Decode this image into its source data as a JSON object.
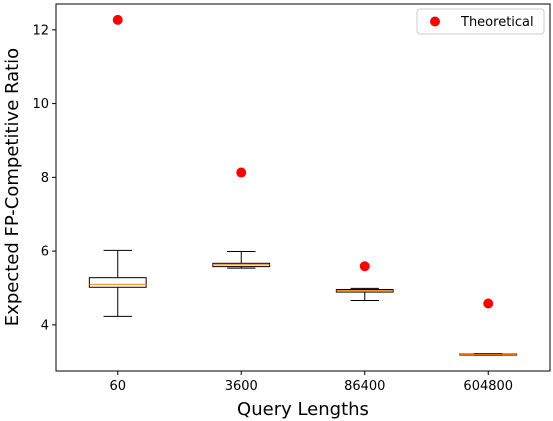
{
  "chart_data": {
    "type": "box",
    "xlabel": "Query Lengths",
    "ylabel": "Expected FP-Competitive Ratio",
    "ylim": [
      2.75,
      12.7
    ],
    "yticks": [
      4,
      6,
      8,
      10,
      12
    ],
    "grid": false,
    "legend": {
      "position": "top-right",
      "entries": [
        "Theoretical"
      ]
    },
    "categories": [
      "60",
      "3600",
      "86400",
      "604800"
    ],
    "boxes": [
      {
        "category": "60",
        "whisker_low": 4.23,
        "q1": 5.02,
        "median": 5.1,
        "q3": 5.28,
        "whisker_high": 6.02
      },
      {
        "category": "3600",
        "whisker_low": 5.54,
        "q1": 5.58,
        "median": 5.63,
        "q3": 5.67,
        "whisker_high": 5.99
      },
      {
        "category": "86400",
        "whisker_low": 4.66,
        "q1": 4.89,
        "median": 4.93,
        "q3": 4.96,
        "whisker_high": 4.99
      },
      {
        "category": "604800",
        "whisker_low": 3.18,
        "q1": 3.19,
        "median": 3.2,
        "q3": 3.21,
        "whisker_high": 3.22
      }
    ],
    "series": [
      {
        "name": "Theoretical",
        "marker": "circle",
        "color": "#ff0000",
        "values": [
          12.27,
          8.13,
          5.59,
          4.58
        ]
      }
    ],
    "colors": {
      "box": "#000000",
      "median": "#ff7f0e",
      "theoretical": "#ff0000"
    }
  }
}
